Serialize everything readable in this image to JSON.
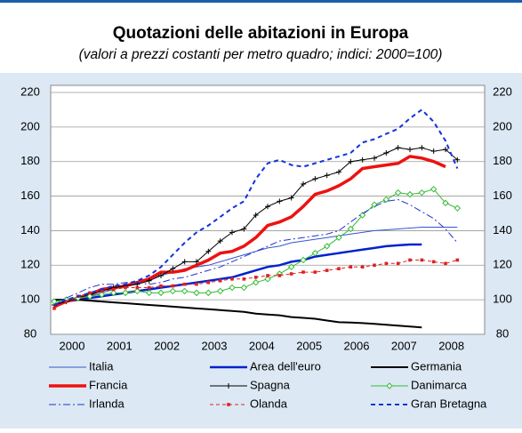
{
  "chart_data": {
    "type": "line",
    "title": "Quotazioni delle abitazioni in Europa",
    "subtitle": "(valori a prezzi costanti per metro quadro; indici: 2000=100)",
    "x": [
      2000.125,
      2000.375,
      2000.625,
      2000.875,
      2001.125,
      2001.375,
      2001.625,
      2001.875,
      2002.125,
      2002.375,
      2002.625,
      2002.875,
      2003.125,
      2003.375,
      2003.625,
      2003.875,
      2004.125,
      2004.375,
      2004.625,
      2004.875,
      2005.125,
      2005.375,
      2005.625,
      2005.875,
      2006.125,
      2006.375,
      2006.625,
      2006.875,
      2007.125,
      2007.375,
      2007.625,
      2007.875,
      2008.125,
      2008.375,
      2008.625
    ],
    "xlim": [
      2000.05,
      2009.2
    ],
    "xticks": [
      {
        "value": 2000.5,
        "label": "2000"
      },
      {
        "value": 2001.5,
        "label": "2001"
      },
      {
        "value": 2002.5,
        "label": "2002"
      },
      {
        "value": 2003.5,
        "label": "2003"
      },
      {
        "value": 2004.5,
        "label": "2004"
      },
      {
        "value": 2005.5,
        "label": "2005"
      },
      {
        "value": 2006.5,
        "label": "2006"
      },
      {
        "value": 2007.5,
        "label": "2007"
      },
      {
        "value": 2008.5,
        "label": "2008"
      }
    ],
    "ylim": [
      80,
      220
    ],
    "yticks": [
      80,
      100,
      120,
      140,
      160,
      180,
      200,
      220
    ],
    "y2lim": [
      80,
      220
    ],
    "y2ticks": [
      80,
      100,
      120,
      140,
      160,
      180,
      200,
      220
    ],
    "grid": true,
    "series": [
      {
        "name": "Italia",
        "color": "#3355cc",
        "width": 1,
        "dash": "none",
        "marker": "none",
        "values": [
          96,
          99,
          101,
          102,
          104,
          106,
          108,
          110,
          112,
          114,
          116,
          118,
          119,
          120,
          122,
          124,
          126,
          128,
          130,
          131,
          133,
          134,
          135,
          136,
          137,
          138,
          139,
          140,
          140.5,
          141,
          141.5,
          142,
          142,
          142,
          142
        ]
      },
      {
        "name": "Area dell'euro",
        "color": "#0022cc",
        "width": 2.5,
        "dash": "none",
        "marker": "none",
        "values": [
          97,
          99,
          100,
          101,
          102,
          103,
          104,
          105,
          106,
          107,
          108,
          109,
          110,
          111,
          112,
          113,
          115,
          117,
          119,
          120,
          122,
          123,
          125,
          126,
          127,
          128,
          129,
          130,
          131,
          131.5,
          132,
          132,
          null,
          null,
          null
        ]
      },
      {
        "name": "Germania",
        "color": "#000000",
        "width": 2,
        "dash": "none",
        "marker": "none",
        "values": [
          100,
          100,
          100,
          99.5,
          99,
          98.5,
          98,
          97.5,
          97,
          96.5,
          96,
          95.5,
          95,
          94.5,
          94,
          93.5,
          93,
          92,
          91.5,
          91,
          90,
          89.5,
          89,
          88,
          87,
          86.8,
          86.5,
          86,
          85.5,
          85,
          84.5,
          84,
          null,
          null,
          null
        ]
      },
      {
        "name": "Francia",
        "color": "#ee1111",
        "width": 3.5,
        "dash": "none",
        "marker": "none",
        "values": [
          96,
          99,
          101,
          103,
          106,
          107,
          108,
          110,
          112,
          116,
          116,
          117,
          120,
          123,
          127,
          128,
          131,
          136,
          143,
          145,
          148,
          154,
          161,
          163,
          166,
          170,
          176,
          177,
          178,
          179,
          183,
          182,
          180,
          177,
          null
        ]
      },
      {
        "name": "Spagna",
        "color": "#000000",
        "width": 1,
        "dash": "none",
        "marker": "plus",
        "values": [
          97,
          99,
          101,
          103,
          105,
          107,
          108,
          109,
          111,
          114,
          118,
          122,
          122,
          128,
          134,
          139,
          141,
          149,
          154,
          157,
          159,
          167,
          170,
          172,
          174,
          180,
          181,
          182,
          185,
          188,
          187,
          188,
          186,
          187,
          181
        ]
      },
      {
        "name": "Danimarca",
        "color": "#33bb33",
        "width": 1,
        "dash": "none",
        "marker": "diamond",
        "values": [
          99,
          100,
          101,
          102,
          103,
          104,
          104,
          105,
          104,
          104,
          105,
          105,
          104,
          104,
          105,
          107,
          107,
          110,
          112,
          115,
          119,
          123,
          127,
          131,
          136,
          141,
          149,
          155,
          158,
          162,
          161,
          162,
          164,
          156,
          153
        ]
      },
      {
        "name": "Irlanda",
        "color": "#2233cc",
        "width": 1,
        "dash": "8 3 2 3",
        "marker": "none",
        "values": [
          97,
          101,
          104,
          107,
          109,
          109,
          110,
          110,
          109,
          110,
          112,
          113,
          115,
          117,
          119,
          122,
          125,
          128,
          131,
          134,
          135,
          136,
          137,
          138,
          140,
          145,
          150,
          154,
          157,
          158,
          155,
          151,
          147,
          141,
          133
        ]
      },
      {
        "name": "Olanda",
        "color": "#dd2222",
        "width": 1,
        "dash": "4 3",
        "marker": "square",
        "values": [
          95,
          99,
          102,
          104,
          105,
          106,
          107,
          107,
          107,
          108,
          108,
          109,
          109,
          110,
          111,
          112,
          112,
          113,
          114,
          114,
          115,
          116,
          116,
          117,
          118,
          119,
          119,
          120,
          121,
          121,
          123,
          123,
          122,
          121,
          123
        ]
      },
      {
        "name": "Gran Bretagna",
        "color": "#1133dd",
        "width": 2,
        "dash": "5 4",
        "marker": "none",
        "values": [
          97,
          100,
          102,
          104,
          106,
          108,
          109,
          111,
          114,
          119,
          126,
          133,
          139,
          143,
          148,
          153,
          157,
          170,
          179,
          181,
          178,
          177,
          179,
          181,
          183,
          185,
          191,
          193,
          196,
          199,
          205,
          210,
          203,
          192,
          176
        ]
      }
    ]
  }
}
